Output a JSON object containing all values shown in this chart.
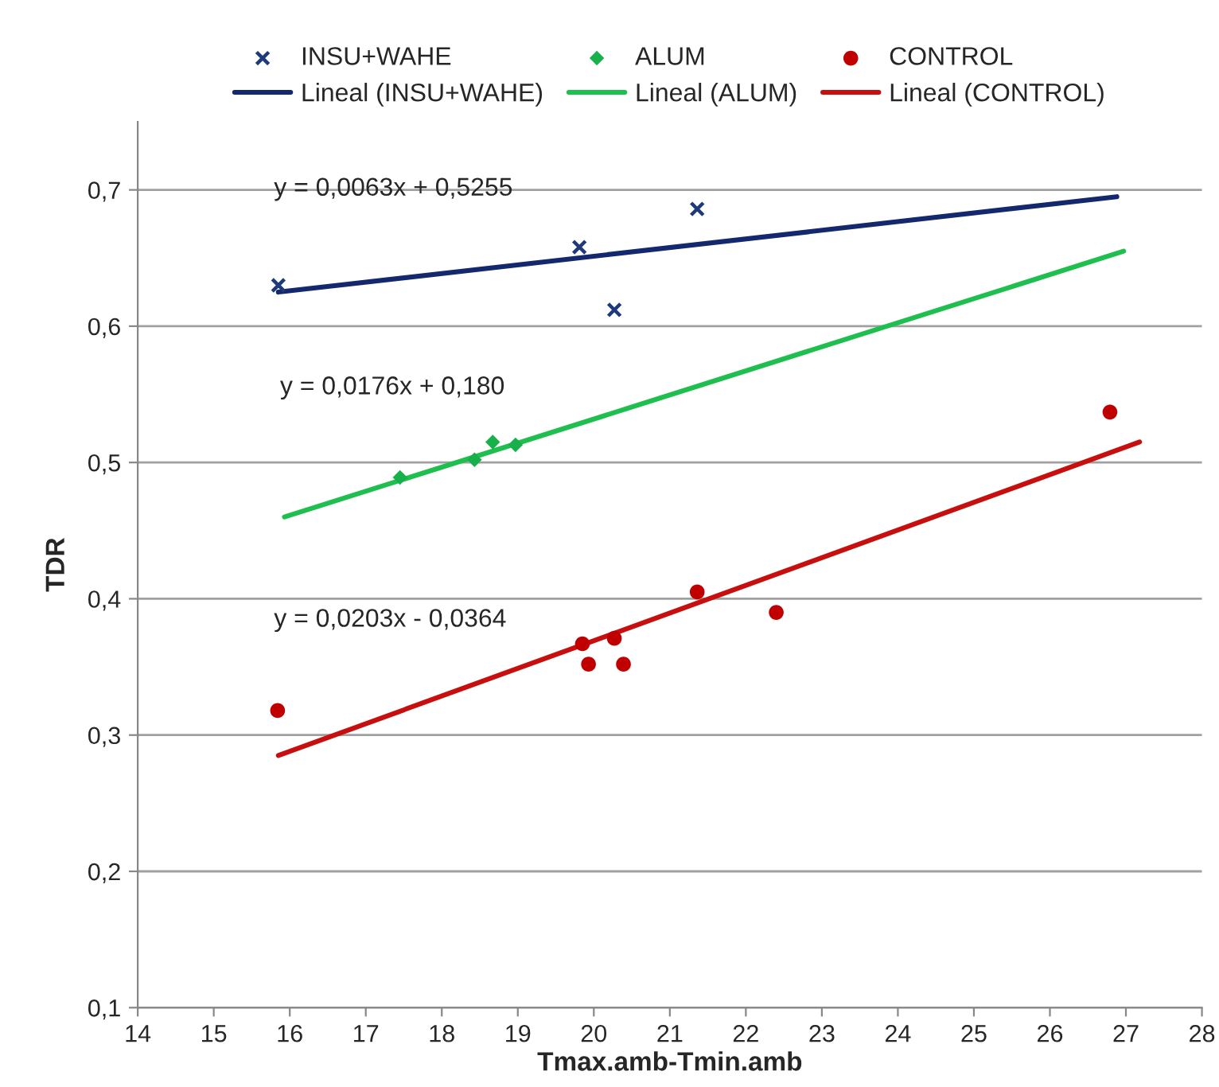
{
  "chart_data": {
    "type": "scatter",
    "xlabel": "Tmax.amb-Tmin.amb",
    "ylabel": "TDR",
    "xlim": [
      14,
      28
    ],
    "xticks": [
      14,
      15,
      16,
      17,
      18,
      19,
      20,
      21,
      22,
      23,
      24,
      25,
      26,
      27,
      28
    ],
    "ylim": [
      0.1,
      0.75
    ],
    "yticks": [
      {
        "value": 0.1,
        "label": "0,1"
      },
      {
        "value": 0.2,
        "label": "0,2"
      },
      {
        "value": 0.3,
        "label": "0,3"
      },
      {
        "value": 0.4,
        "label": "0,4"
      },
      {
        "value": 0.5,
        "label": "0,5"
      },
      {
        "value": 0.6,
        "label": "0,6"
      },
      {
        "value": 0.7,
        "label": "0,7"
      }
    ],
    "grid": "y",
    "legend": "top",
    "series": [
      {
        "name": "INSU+WAHE",
        "marker": "cross",
        "color": "#1f3a7a",
        "x": [
          15.85,
          19.81,
          20.27,
          21.36
        ],
        "values": [
          0.63,
          0.658,
          0.612,
          0.686
        ]
      },
      {
        "name": "ALUM",
        "marker": "diamond",
        "color": "#17b04a",
        "x": [
          17.45,
          18.43,
          18.67,
          18.97
        ],
        "values": [
          0.489,
          0.502,
          0.515,
          0.513
        ]
      },
      {
        "name": "CONTROL",
        "marker": "circle",
        "color": "#c00000",
        "x": [
          15.84,
          19.85,
          19.93,
          20.27,
          20.39,
          21.36,
          22.4,
          26.79
        ],
        "values": [
          0.318,
          0.367,
          0.352,
          0.371,
          0.352,
          0.405,
          0.39,
          0.537
        ]
      },
      {
        "name": "Lineal (INSU+WAHE)",
        "type": "line",
        "marker": "none",
        "line_style": "solid",
        "color": "#14286e",
        "x": [
          15.85,
          26.88
        ],
        "values": [
          0.625,
          0.695
        ]
      },
      {
        "name": "Lineal (ALUM)",
        "type": "line",
        "marker": "none",
        "line_style": "solid",
        "color": "#1fbf4f",
        "x": [
          15.93,
          26.97
        ],
        "values": [
          0.46,
          0.655
        ]
      },
      {
        "name": "Lineal (CONTROL)",
        "type": "line",
        "marker": "none",
        "line_style": "solid",
        "color": "#c80f0f",
        "x": [
          15.85,
          27.18
        ],
        "values": [
          0.285,
          0.515
        ]
      }
    ],
    "annotations": [
      "y = 0,0063x + 0,5255",
      "y = 0,0176x + 0,180",
      "y = 0,0203x - 0,0364"
    ]
  }
}
